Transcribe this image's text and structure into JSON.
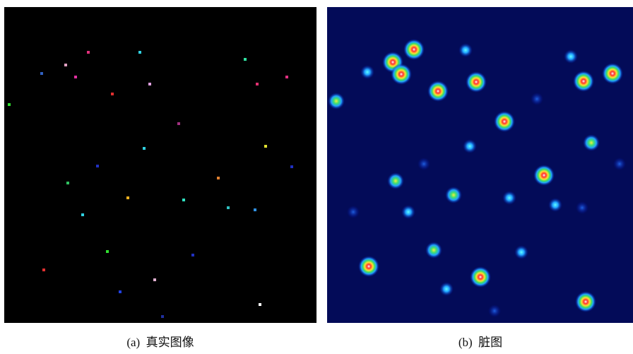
{
  "panels": [
    {
      "caption": "(a)  真实图像"
    },
    {
      "caption": "(b)  脏图"
    }
  ]
}
